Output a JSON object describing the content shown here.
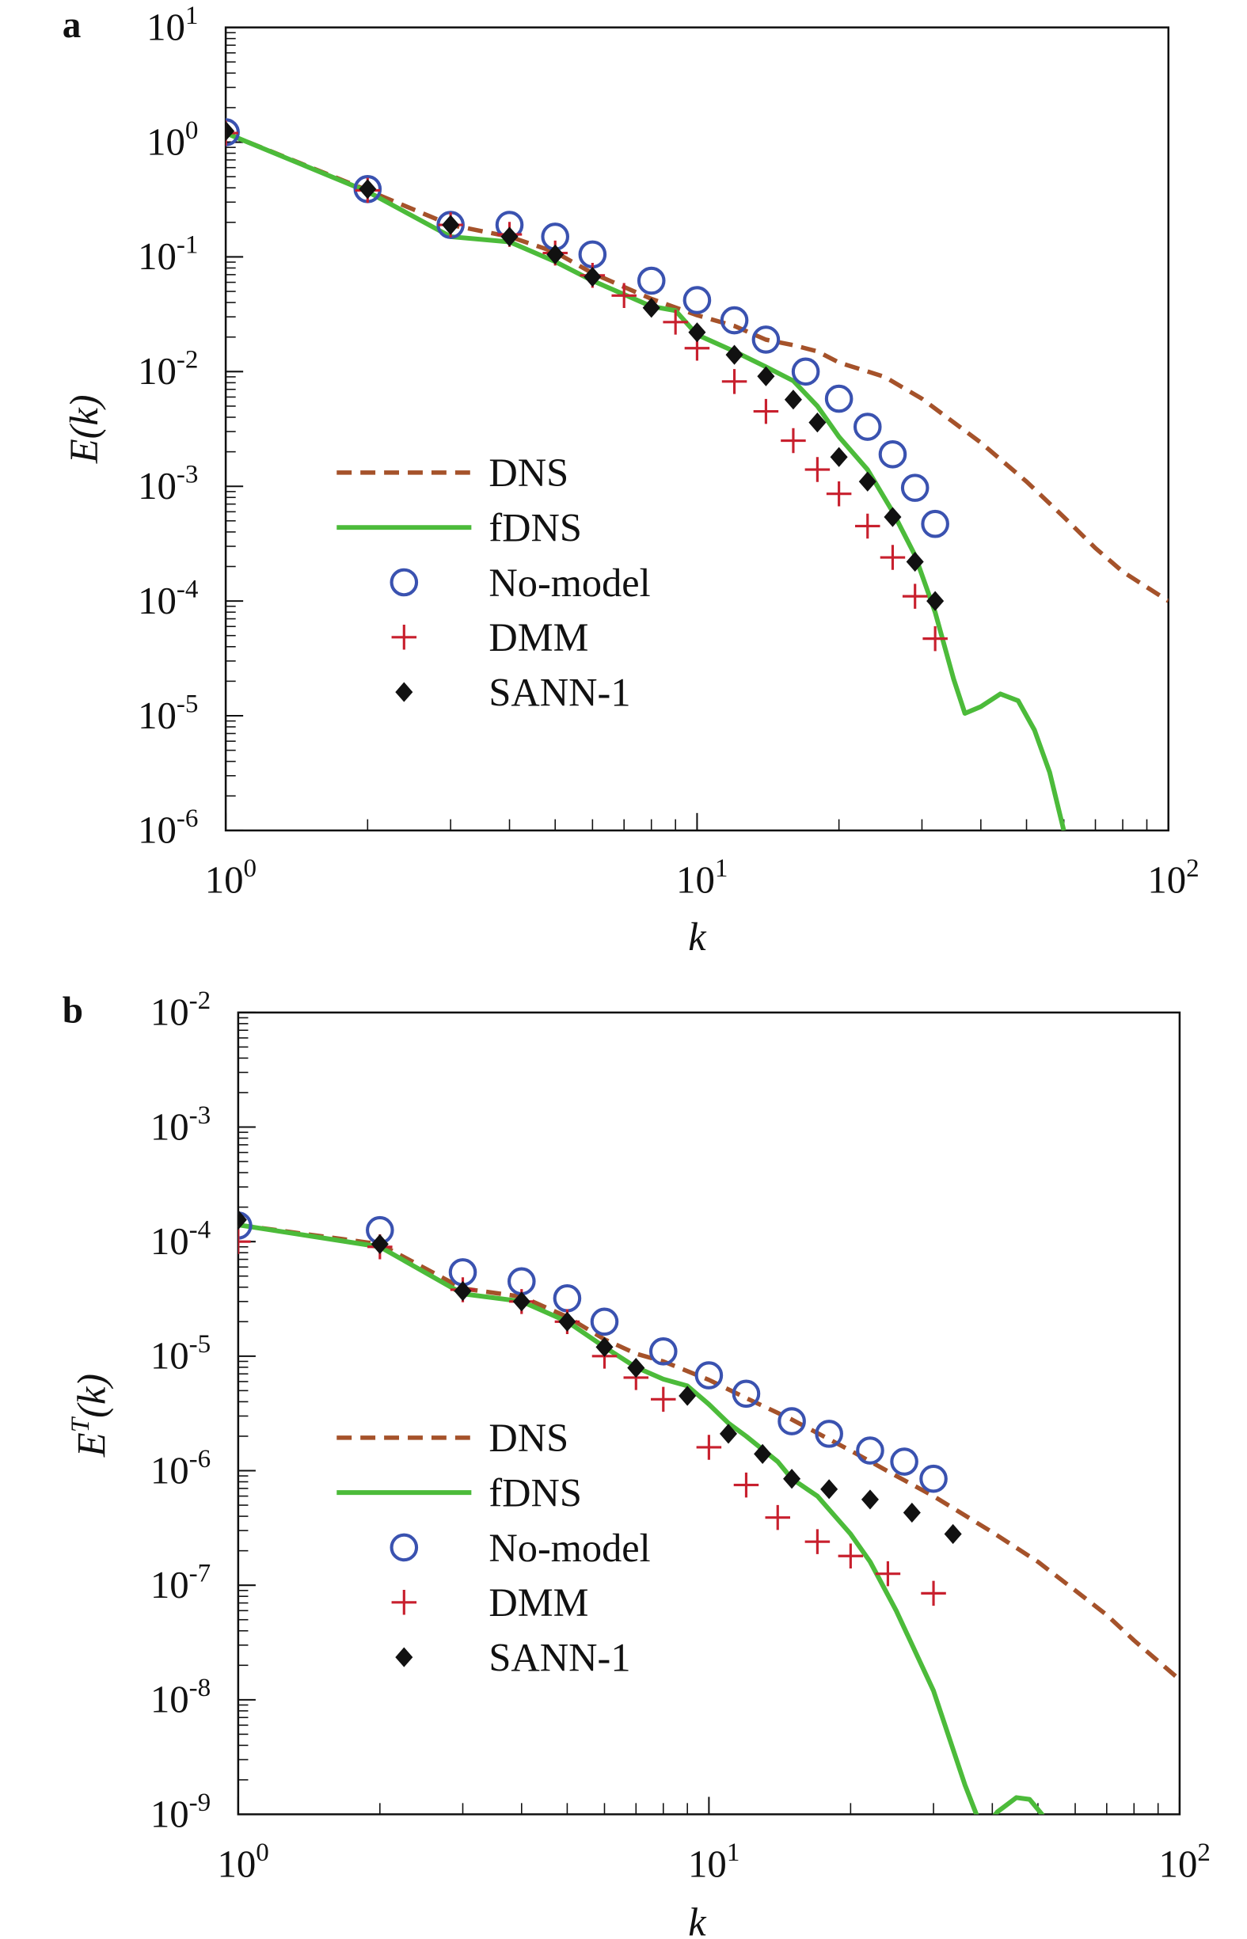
{
  "chart_data": [
    {
      "panel_label": "a",
      "type": "line+scatter",
      "xlabel": "k",
      "ylabel": "E(k)",
      "xscale": "log",
      "yscale": "log",
      "xlim": [
        1,
        100
      ],
      "ylim": [
        1e-06,
        10
      ],
      "x_tick_labels": [
        "10^0",
        "10^1",
        "10^2"
      ],
      "y_tick_labels": [
        "10^1",
        "10^0",
        "10^-1",
        "10^-2",
        "10^-3",
        "10^-4",
        "10^-5",
        "10^-6"
      ],
      "grid": false,
      "legend_placement": "lower-left",
      "series": [
        {
          "name": "DNS",
          "style": "dashed-line",
          "color": "#a5522a",
          "x": [
            1,
            2,
            3,
            4,
            5,
            6,
            8,
            10,
            12,
            14,
            16,
            18,
            20,
            25,
            30,
            40,
            50,
            60,
            70,
            80,
            100
          ],
          "y": [
            1.2,
            0.38,
            0.19,
            0.15,
            0.11,
            0.072,
            0.043,
            0.031,
            0.025,
            0.019,
            0.017,
            0.015,
            0.012,
            0.009,
            0.0058,
            0.0024,
            0.0011,
            0.00054,
            0.00029,
            0.00018,
            0.0001
          ]
        },
        {
          "name": "fDNS",
          "style": "solid-line",
          "color": "#4cbb3a",
          "x": [
            1,
            2,
            3,
            4,
            5,
            6,
            8,
            9,
            10,
            12,
            14,
            16,
            18,
            20,
            23,
            26,
            29,
            32,
            35,
            37,
            40,
            44,
            48,
            52,
            56,
            60
          ],
          "y": [
            1.2,
            0.37,
            0.15,
            0.135,
            0.091,
            0.062,
            0.037,
            0.034,
            0.021,
            0.015,
            0.011,
            0.0083,
            0.005,
            0.0027,
            0.0014,
            0.0006,
            0.00025,
            8e-05,
            2.1e-05,
            1.05e-05,
            1.2e-05,
            1.55e-05,
            1.35e-05,
            7.5e-06,
            3.2e-06,
            1e-06
          ]
        },
        {
          "name": "No-model",
          "style": "open-circle",
          "color": "#3a52b0",
          "x": [
            1,
            2,
            3,
            4,
            5,
            6,
            8,
            10,
            12,
            14,
            17,
            20,
            23,
            26,
            29,
            32
          ],
          "y": [
            1.22,
            0.39,
            0.19,
            0.19,
            0.15,
            0.105,
            0.062,
            0.042,
            0.028,
            0.019,
            0.01,
            0.0058,
            0.0033,
            0.0019,
            0.00097,
            0.00047
          ]
        },
        {
          "name": "DMM",
          "style": "plus",
          "color": "#c8202e",
          "x": [
            1,
            2,
            3,
            4,
            5,
            6,
            7,
            9,
            10,
            12,
            14,
            16,
            18,
            20,
            23,
            26,
            29,
            32
          ],
          "y": [
            1.2,
            0.38,
            0.19,
            0.157,
            0.108,
            0.069,
            0.046,
            0.027,
            0.016,
            0.0082,
            0.0045,
            0.0025,
            0.0014,
            0.00086,
            0.00045,
            0.00024,
            0.00011,
            4.7e-05
          ]
        },
        {
          "name": "SANN-1",
          "style": "filled-diamond",
          "color": "#111111",
          "x": [
            1,
            2,
            3,
            4,
            5,
            6,
            8,
            10,
            12,
            14,
            16,
            18,
            20,
            23,
            26,
            29,
            32
          ],
          "y": [
            1.25,
            0.39,
            0.19,
            0.15,
            0.105,
            0.067,
            0.036,
            0.022,
            0.014,
            0.0091,
            0.0057,
            0.0036,
            0.0018,
            0.0011,
            0.00054,
            0.00022,
            0.0001
          ]
        }
      ]
    },
    {
      "panel_label": "b",
      "type": "line+scatter",
      "xlabel": "k",
      "ylabel": "E^T(k)",
      "xscale": "log",
      "yscale": "log",
      "xlim": [
        1,
        100
      ],
      "ylim": [
        1e-09,
        0.01
      ],
      "x_tick_labels": [
        "10^0",
        "10^1",
        "10^2"
      ],
      "y_tick_labels": [
        "10^-2",
        "10^-3",
        "10^-4",
        "10^-5",
        "10^-6",
        "10^-7",
        "10^-8",
        "10^-9"
      ],
      "grid": false,
      "legend_placement": "lower-left",
      "series": [
        {
          "name": "DNS",
          "style": "dashed-line",
          "color": "#a5522a",
          "x": [
            1,
            2,
            3,
            4,
            5,
            6,
            7,
            8,
            10,
            12,
            15,
            20,
            25,
            30,
            40,
            50,
            60,
            70,
            80,
            100
          ],
          "y": [
            0.00014,
            9.5e-05,
            3.9e-05,
            3.3e-05,
            2.2e-05,
            1.4e-05,
            1.05e-05,
            9e-06,
            6.2e-06,
            4.3e-06,
            2.8e-06,
            1.5e-06,
            9e-07,
            6e-07,
            2.9e-07,
            1.6e-07,
            9e-08,
            5.5e-08,
            3.3e-08,
            1.5e-08
          ]
        },
        {
          "name": "fDNS",
          "style": "solid-line",
          "color": "#4cbb3a",
          "x": [
            1,
            2,
            3,
            4,
            5,
            6,
            7,
            8,
            9,
            10,
            11,
            12,
            14,
            15,
            17,
            20,
            22,
            25,
            30,
            35,
            37,
            38,
            41,
            45,
            48,
            51,
            53
          ],
          "y": [
            0.00014,
            9e-05,
            3.5e-05,
            3e-05,
            2e-05,
            1.2e-05,
            8e-06,
            6.3e-06,
            5.5e-06,
            3.8e-06,
            2.6e-06,
            2e-06,
            1.2e-06,
            8.5e-07,
            6e-07,
            2.8e-07,
            1.6e-07,
            6e-08,
            1.2e-08,
            1.8e-09,
            1e-09,
            7e-10,
            1.05e-09,
            1.4e-09,
            1.35e-09,
            1e-09,
            7e-10
          ]
        },
        {
          "name": "No-model",
          "style": "open-circle",
          "color": "#3a52b0",
          "x": [
            1,
            2,
            3,
            4,
            5,
            6,
            8,
            10,
            12,
            15,
            18,
            22,
            26,
            30
          ],
          "y": [
            0.000138,
            0.000126,
            5.4e-05,
            4.5e-05,
            3.2e-05,
            2e-05,
            1.1e-05,
            6.8e-06,
            4.7e-06,
            2.7e-06,
            2.1e-06,
            1.5e-06,
            1.2e-06,
            8.5e-07
          ]
        },
        {
          "name": "DMM",
          "style": "plus",
          "color": "#c8202e",
          "x": [
            1,
            2,
            3,
            4,
            5,
            6,
            7,
            8,
            10,
            12,
            14,
            17,
            20,
            24,
            30
          ],
          "y": [
            0.0001,
            9e-05,
            3.8e-05,
            3e-05,
            2e-05,
            1e-05,
            6.5e-06,
            4.2e-06,
            1.6e-06,
            7.5e-07,
            3.9e-07,
            2.4e-07,
            1.8e-07,
            1.26e-07,
            8.5e-08
          ]
        },
        {
          "name": "SANN-1",
          "style": "filled-diamond",
          "color": "#111111",
          "x": [
            1,
            2,
            3,
            4,
            5,
            6,
            7,
            9,
            11,
            13,
            15,
            18,
            22,
            27,
            33
          ],
          "y": [
            0.000155,
            9.5e-05,
            3.7e-05,
            3e-05,
            2e-05,
            1.2e-05,
            7.9e-06,
            4.5e-06,
            2.1e-06,
            1.4e-06,
            8.5e-07,
            6.9e-07,
            5.6e-07,
            4.3e-07,
            2.8e-07
          ]
        }
      ]
    }
  ]
}
